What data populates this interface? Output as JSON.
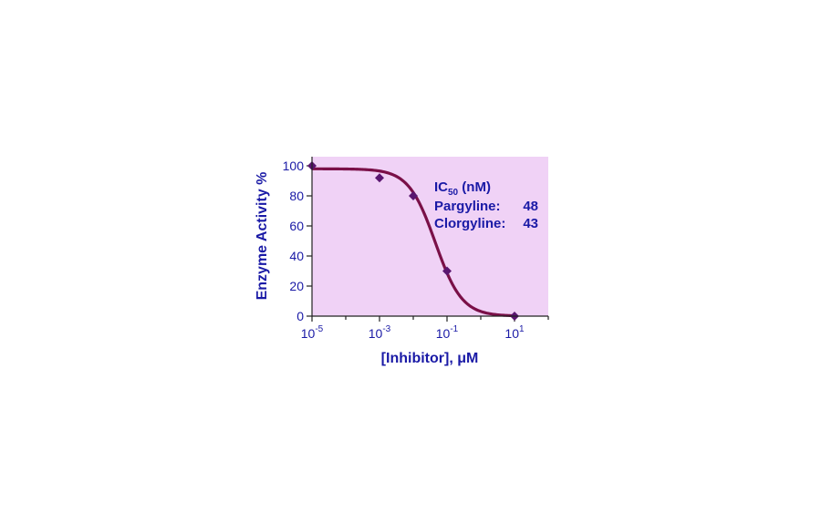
{
  "chart_data": {
    "type": "line",
    "x_scale": "log",
    "xlim": [
      1e-05,
      1
    ],
    "ylim": [
      0,
      100
    ],
    "x_ticks": [
      {
        "base": "10",
        "exp": "-5",
        "value": 1e-05
      },
      {
        "base": "10",
        "exp": "-3",
        "value": 0.001
      },
      {
        "base": "10",
        "exp": "-1",
        "value": 0.1
      },
      {
        "base": "10",
        "exp": "1",
        "value": 10
      }
    ],
    "y_ticks": [
      "0",
      "20",
      "40",
      "60",
      "80",
      "100"
    ],
    "xlabel": "[Inhibitor], μM",
    "ylabel": "Enzyme Activity %",
    "grid": false,
    "background": "#f0d2f6",
    "curve_color": "#7a1048",
    "marker_color": "#5a1670",
    "text_color": "#1a1aa6",
    "points": [
      {
        "x": 1e-05,
        "y": 100
      },
      {
        "x": 0.001,
        "y": 92
      },
      {
        "x": 0.01,
        "y": 80
      },
      {
        "x": 0.1,
        "y": 30
      },
      {
        "x": 10,
        "y": 0
      }
    ],
    "fit": {
      "top": 98,
      "bottom": 0,
      "ic50": 0.045,
      "hill": 1.1
    },
    "annotation": {
      "header_main": "IC",
      "header_sub": "50",
      "header_rest": " (nM)",
      "rows": [
        {
          "label": "Pargyline:",
          "value": "48"
        },
        {
          "label": "Clorgyline:",
          "value": "43"
        }
      ]
    }
  }
}
